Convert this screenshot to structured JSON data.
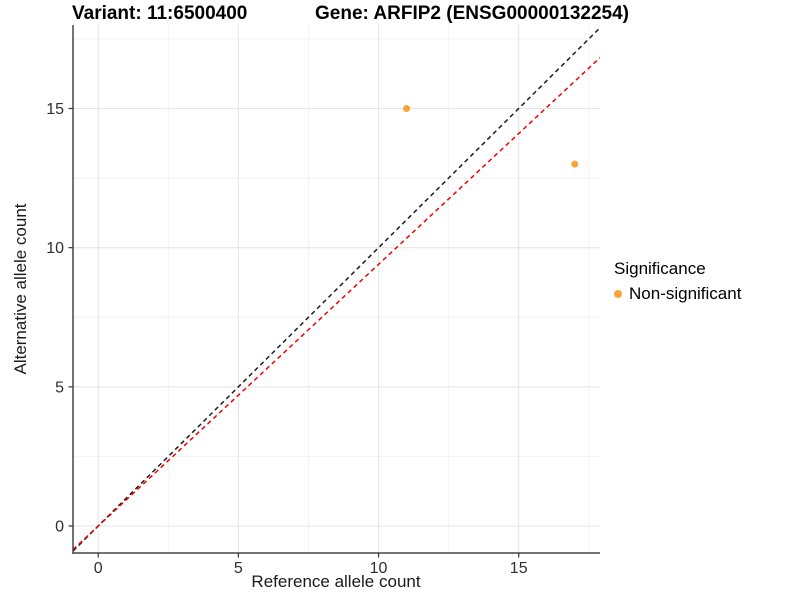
{
  "chart_data": {
    "type": "scatter",
    "title_left": "Variant: 11:6500400",
    "title_right": "Gene: ARFIP2 (ENSG00000132254)",
    "xlabel": "Reference allele count",
    "ylabel": "Alternative allele count",
    "xlim": [
      -0.9,
      17.9
    ],
    "ylim": [
      -0.97,
      18.0
    ],
    "x_ticks": [
      0,
      5,
      10,
      15
    ],
    "y_ticks": [
      0,
      5,
      10,
      15
    ],
    "x_minor_ticks": [
      2.5,
      7.5,
      12.5,
      17.5
    ],
    "y_minor_ticks": [
      2.5,
      7.5,
      12.5,
      17.5
    ],
    "grid": "on",
    "points": [
      {
        "x": 11,
        "y": 15,
        "series": "Non-significant"
      },
      {
        "x": 17,
        "y": 13,
        "series": "Non-significant"
      }
    ],
    "point_color": "#F9A43B",
    "lines": [
      {
        "name": "identity-line",
        "slope": 1,
        "intercept": 0,
        "color": "#1c1c1c",
        "style": "dashed"
      },
      {
        "name": "ratio-line",
        "slope": 0.94,
        "intercept": 0,
        "color": "#F20000",
        "style": "dashed"
      }
    ],
    "legend": {
      "title": "Significance",
      "position": "right",
      "items": [
        {
          "label": "Non-significant",
          "color": "#F9A43B"
        }
      ]
    },
    "colors": {
      "axis_line": "#454545",
      "major_grid": "#e6e6e6",
      "minor_grid": "#f2f2f2",
      "tick": "#333333"
    }
  }
}
